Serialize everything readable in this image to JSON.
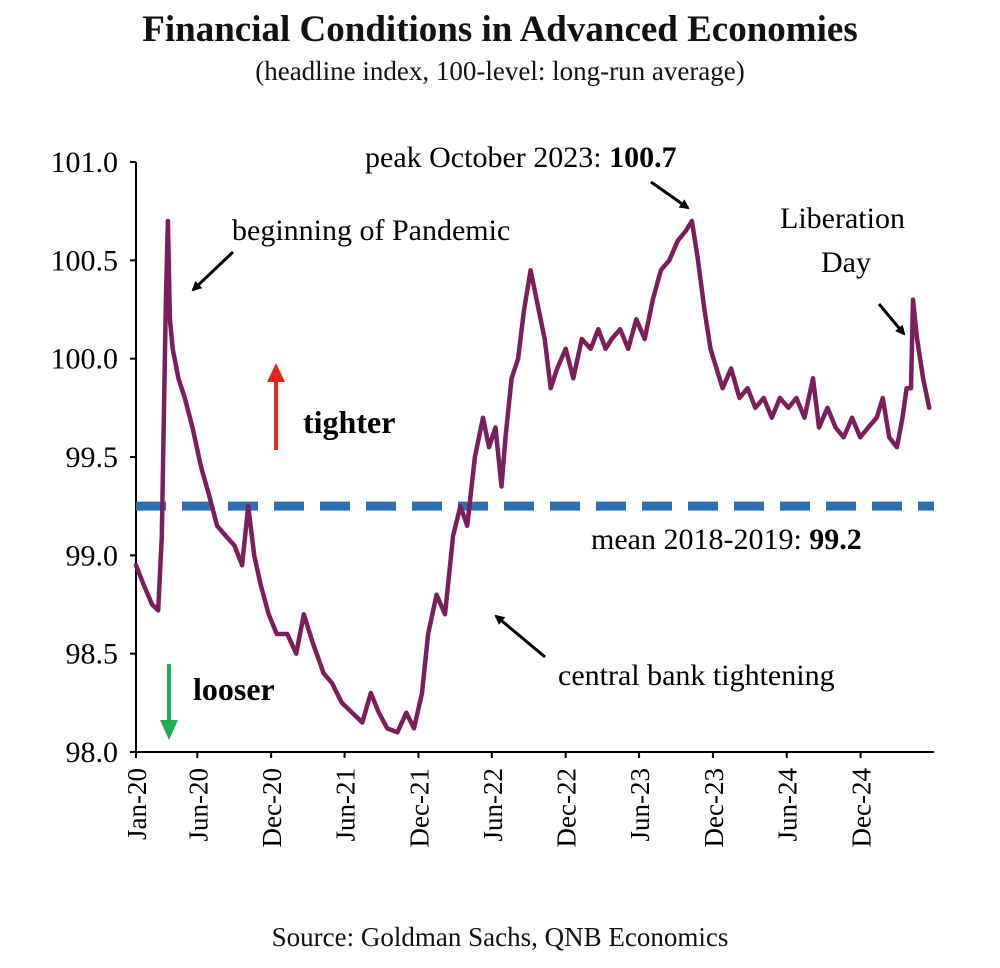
{
  "chart_data": {
    "type": "line",
    "title": "Financial Conditions in Advanced Economies",
    "subtitle": "(headline index, 100-level: long-run average)",
    "source": "Source: Goldman Sachs, QNB Economics",
    "ylim": [
      98.0,
      101.0
    ],
    "y_ticks": [
      "101.0",
      "100.5",
      "100.0",
      "99.5",
      "99.0",
      "98.5",
      "98.0"
    ],
    "x_ticks": [
      "Jan-20",
      "Jun-20",
      "Dec-20",
      "Jun-21",
      "Dec-21",
      "Jun-22",
      "Dec-22",
      "Jun-23",
      "Dec-23",
      "Jun-24",
      "Dec-24"
    ],
    "grid": false,
    "colors": {
      "series": "#7b1f5c",
      "mean_line": "#2e6fb4",
      "tighter_arrow": "#e8251c",
      "looser_arrow": "#1fae55"
    },
    "series": [
      {
        "values": [
          [
            "2020-01-01",
            98.95
          ],
          [
            "2020-01-20",
            98.85
          ],
          [
            "2020-02-10",
            98.75
          ],
          [
            "2020-02-25",
            98.72
          ],
          [
            "2020-03-05",
            99.1
          ],
          [
            "2020-03-15",
            100.3
          ],
          [
            "2020-03-20",
            100.7
          ],
          [
            "2020-03-25",
            100.2
          ],
          [
            "2020-04-01",
            100.05
          ],
          [
            "2020-04-15",
            99.9
          ],
          [
            "2020-05-01",
            99.8
          ],
          [
            "2020-05-20",
            99.65
          ],
          [
            "2020-06-10",
            99.45
          ],
          [
            "2020-07-01",
            99.3
          ],
          [
            "2020-07-20",
            99.15
          ],
          [
            "2020-08-10",
            99.1
          ],
          [
            "2020-09-01",
            99.05
          ],
          [
            "2020-09-20",
            98.95
          ],
          [
            "2020-10-05",
            99.25
          ],
          [
            "2020-10-20",
            99.0
          ],
          [
            "2020-11-05",
            98.85
          ],
          [
            "2020-11-25",
            98.7
          ],
          [
            "2020-12-15",
            98.6
          ],
          [
            "2021-01-10",
            98.6
          ],
          [
            "2021-02-01",
            98.5
          ],
          [
            "2021-02-20",
            98.7
          ],
          [
            "2021-03-15",
            98.55
          ],
          [
            "2021-04-10",
            98.4
          ],
          [
            "2021-05-01",
            98.35
          ],
          [
            "2021-05-25",
            98.25
          ],
          [
            "2021-06-20",
            98.2
          ],
          [
            "2021-07-15",
            98.15
          ],
          [
            "2021-08-05",
            98.3
          ],
          [
            "2021-08-25",
            98.2
          ],
          [
            "2021-09-15",
            98.12
          ],
          [
            "2021-10-10",
            98.1
          ],
          [
            "2021-11-01",
            98.2
          ],
          [
            "2021-11-20",
            98.12
          ],
          [
            "2021-12-10",
            98.3
          ],
          [
            "2021-12-25",
            98.6
          ],
          [
            "2022-01-15",
            98.8
          ],
          [
            "2022-02-05",
            98.7
          ],
          [
            "2022-02-25",
            99.1
          ],
          [
            "2022-03-15",
            99.25
          ],
          [
            "2022-04-01",
            99.15
          ],
          [
            "2022-04-20",
            99.5
          ],
          [
            "2022-05-10",
            99.7
          ],
          [
            "2022-05-25",
            99.55
          ],
          [
            "2022-06-10",
            99.65
          ],
          [
            "2022-06-25",
            99.35
          ],
          [
            "2022-07-05",
            99.6
          ],
          [
            "2022-07-20",
            99.9
          ],
          [
            "2022-08-05",
            100.0
          ],
          [
            "2022-08-20",
            100.25
          ],
          [
            "2022-09-05",
            100.45
          ],
          [
            "2022-09-20",
            100.3
          ],
          [
            "2022-10-10",
            100.1
          ],
          [
            "2022-10-25",
            99.85
          ],
          [
            "2022-11-10",
            99.95
          ],
          [
            "2022-12-01",
            100.05
          ],
          [
            "2022-12-20",
            99.9
          ],
          [
            "2023-01-10",
            100.1
          ],
          [
            "2023-02-01",
            100.05
          ],
          [
            "2023-02-20",
            100.15
          ],
          [
            "2023-03-10",
            100.05
          ],
          [
            "2023-03-25",
            100.1
          ],
          [
            "2023-04-15",
            100.15
          ],
          [
            "2023-05-05",
            100.05
          ],
          [
            "2023-05-25",
            100.2
          ],
          [
            "2023-06-15",
            100.1
          ],
          [
            "2023-07-05",
            100.3
          ],
          [
            "2023-07-25",
            100.45
          ],
          [
            "2023-08-15",
            100.5
          ],
          [
            "2023-09-05",
            100.6
          ],
          [
            "2023-09-25",
            100.65
          ],
          [
            "2023-10-10",
            100.7
          ],
          [
            "2023-10-25",
            100.5
          ],
          [
            "2023-11-10",
            100.25
          ],
          [
            "2023-11-25",
            100.05
          ],
          [
            "2023-12-10",
            99.95
          ],
          [
            "2023-12-25",
            99.85
          ],
          [
            "2024-01-15",
            99.95
          ],
          [
            "2024-02-05",
            99.8
          ],
          [
            "2024-02-25",
            99.85
          ],
          [
            "2024-03-15",
            99.75
          ],
          [
            "2024-04-05",
            99.8
          ],
          [
            "2024-04-25",
            99.7
          ],
          [
            "2024-05-15",
            99.8
          ],
          [
            "2024-06-05",
            99.75
          ],
          [
            "2024-06-25",
            99.8
          ],
          [
            "2024-07-15",
            99.7
          ],
          [
            "2024-08-05",
            99.9
          ],
          [
            "2024-08-20",
            99.65
          ],
          [
            "2024-09-10",
            99.75
          ],
          [
            "2024-09-30",
            99.65
          ],
          [
            "2024-10-20",
            99.6
          ],
          [
            "2024-11-10",
            99.7
          ],
          [
            "2024-11-30",
            99.6
          ],
          [
            "2024-12-20",
            99.65
          ],
          [
            "2025-01-10",
            99.7
          ],
          [
            "2025-01-25",
            99.8
          ],
          [
            "2025-02-10",
            99.6
          ],
          [
            "2025-03-01",
            99.55
          ],
          [
            "2025-03-15",
            99.7
          ],
          [
            "2025-03-25",
            99.85
          ],
          [
            "2025-04-05",
            99.85
          ],
          [
            "2025-04-10",
            100.3
          ],
          [
            "2025-04-20",
            100.1
          ],
          [
            "2025-05-05",
            99.9
          ],
          [
            "2025-05-20",
            99.75
          ]
        ]
      }
    ],
    "reference_lines": [
      {
        "label": "mean 2018-2019: ",
        "value_label": "99.2",
        "value": 99.25
      }
    ],
    "annotations": {
      "pandemic": "beginning  of Pandemic",
      "peak_prefix": "peak October 2023: ",
      "peak_value": "100.7",
      "liberation_1": "Liberation",
      "liberation_2": "Day",
      "tighter": "tighter",
      "looser": "looser",
      "tightening": "central bank tightening"
    }
  }
}
